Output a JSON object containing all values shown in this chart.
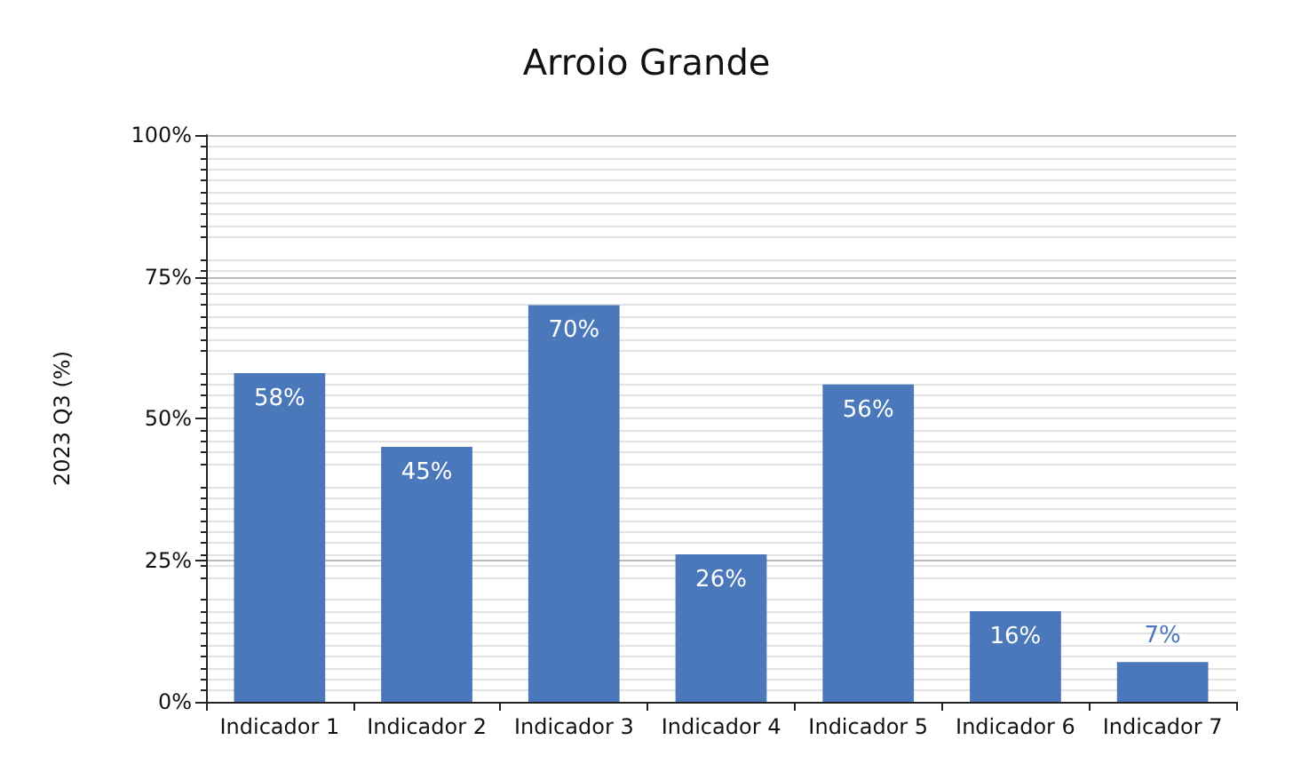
{
  "chart_data": {
    "type": "bar",
    "title": "Arroio Grande",
    "ylabel": "2023 Q3 (%)",
    "categories": [
      "Indicador 1",
      "Indicador 2",
      "Indicador 3",
      "Indicador 4",
      "Indicador 5",
      "Indicador 6",
      "Indicador 7"
    ],
    "values": [
      58,
      45,
      70,
      26,
      56,
      16,
      7
    ],
    "value_labels": [
      "58%",
      "45%",
      "70%",
      "26%",
      "56%",
      "16%",
      "7%"
    ],
    "color": "#4a78ba",
    "ylim": [
      0,
      100
    ],
    "yticks": [
      {
        "value": 0,
        "label": "0%"
      },
      {
        "value": 25,
        "label": "25%"
      },
      {
        "value": 50,
        "label": "50%"
      },
      {
        "value": 75,
        "label": "75%"
      },
      {
        "value": 100,
        "label": "100%"
      }
    ],
    "grid": "y"
  }
}
